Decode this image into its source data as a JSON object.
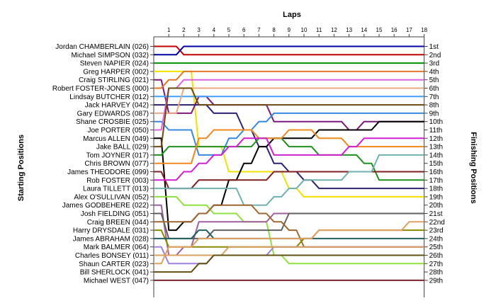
{
  "chart_data": {
    "type": "line",
    "title": "Laps",
    "ylabel_left": "Starting Positions",
    "ylabel_right": "Finishing Positions",
    "laps": [
      1,
      2,
      3,
      4,
      5,
      6,
      7,
      8,
      9,
      10,
      11,
      12,
      13,
      14,
      15,
      16,
      17,
      18
    ],
    "starting_labels": [
      "Jordan CHAMBERLAIN (026)",
      "Michael SIMPSON (032)",
      "Steven NAPIER (024)",
      "Greg HARPER (002)",
      "Craig STIRLING (021)",
      "Robert FOSTER-JONES (000)",
      "Lindsay BUTCHER (012)",
      "Jack HARVEY (042)",
      "Gary EDWARDS (087)",
      "Shane CROSBIE (025)",
      "Joe PORTER (050)",
      "Marcus ALLEN (049)",
      "Jake BALL (029)",
      "Tom JOYNER (017)",
      "Chris BROWN (077)",
      "James THEODORE (099)",
      "Rob FOSTER (003)",
      "Laura TILLETT (013)",
      "Alex O'SULLIVAN (052)",
      "James GODBEHERE (022)",
      "Josh FIELDING (051)",
      "Craig BREEN (044)",
      "Harry DRYSDALE (031)",
      "James ABRAHAM (028)",
      "Mark BALMER (064)",
      "Charles BONSEY (011)",
      "Shaun CARTER (023)",
      "Bill SHERLOCK (041)",
      "Michael WEST (047)"
    ],
    "finishing_labels": [
      "1st",
      "2nd",
      "3rd",
      "4th",
      "5th",
      "6th",
      "7th",
      "8th",
      "9th",
      "10th",
      "11th",
      "12th",
      "13th",
      "14th",
      "15th",
      "16th",
      "17th",
      "18th",
      "19th",
      "20th",
      "21st",
      "22nd",
      "23rd",
      "24th",
      "25th",
      "26th",
      "27th",
      "28th",
      "29th"
    ],
    "series": [
      {
        "color": "#c00000",
        "values": [
          1,
          1,
          2,
          2,
          2,
          2,
          2,
          2,
          2,
          2,
          2,
          2,
          2,
          2,
          2,
          2,
          2,
          2,
          2
        ]
      },
      {
        "color": "#0000a0",
        "values": [
          2,
          2,
          1,
          1,
          1,
          1,
          1,
          1,
          1,
          1,
          1,
          1,
          1,
          1,
          1,
          1,
          1,
          1,
          1
        ]
      },
      {
        "color": "#009000",
        "values": [
          3,
          3,
          3,
          3,
          3,
          3,
          3,
          3,
          3,
          3,
          3,
          3,
          3,
          3,
          3,
          3,
          3,
          3,
          3
        ]
      },
      {
        "color": "#f0e000",
        "values": [
          4,
          4,
          4,
          13,
          13,
          16,
          16,
          16,
          16,
          18,
          19,
          19,
          19,
          19,
          19,
          19,
          19,
          19,
          19
        ]
      },
      {
        "color": "#7b1a7b",
        "values": [
          5,
          9,
          9,
          7,
          8,
          8,
          8,
          8,
          10,
          10,
          10,
          10,
          10,
          11,
          10,
          10,
          10,
          10,
          10
        ]
      },
      {
        "color": "#e07828",
        "values": [
          6,
          5,
          4,
          4,
          4,
          4,
          4,
          4,
          4,
          4,
          4,
          4,
          4,
          4,
          4,
          4,
          4,
          4,
          4
        ]
      },
      {
        "color": "#40a0ff",
        "values": [
          7,
          7,
          7,
          7,
          7,
          7,
          7,
          7,
          7,
          7,
          7,
          7,
          7,
          7,
          7,
          7,
          7,
          7,
          7
        ]
      },
      {
        "color": "#302070",
        "values": [
          8,
          8,
          8,
          8,
          9,
          9,
          11,
          13,
          15,
          16,
          17,
          18,
          18,
          18,
          18,
          18,
          18,
          18,
          18
        ]
      },
      {
        "color": "#e8a880",
        "values": [
          9,
          9,
          6,
          6,
          6,
          6,
          6,
          6,
          6,
          6,
          6,
          6,
          6,
          6,
          6,
          6,
          6,
          6,
          6
        ]
      },
      {
        "color": "#3888e0",
        "values": [
          10,
          11,
          11,
          14,
          14,
          12,
          11,
          10,
          9,
          9,
          9,
          9,
          9,
          9,
          9,
          9,
          9,
          9,
          9
        ]
      },
      {
        "color": "#e060e0",
        "values": [
          11,
          6,
          5,
          5,
          5,
          5,
          5,
          5,
          5,
          5,
          5,
          5,
          5,
          5,
          5,
          5,
          5,
          5,
          5
        ]
      },
      {
        "color": "#000000",
        "values": [
          12,
          23,
          22,
          21,
          20,
          17,
          15,
          13,
          12,
          12,
          12,
          11,
          11,
          11,
          11,
          10,
          10,
          10,
          10
        ]
      },
      {
        "color": "#6c4a10",
        "values": [
          13,
          6,
          6,
          8,
          8,
          8,
          8,
          8,
          8,
          8,
          8,
          8,
          8,
          8,
          8,
          8,
          8,
          8,
          8
        ]
      },
      {
        "color": "#209020",
        "values": [
          14,
          13,
          13,
          13,
          13,
          13,
          13,
          12,
          12,
          13,
          13,
          14,
          14,
          14,
          15,
          17,
          17,
          17,
          17
        ]
      },
      {
        "color": "#f08820",
        "values": [
          15,
          15,
          15,
          12,
          11,
          11,
          11,
          12,
          12,
          11,
          11,
          12,
          12,
          13,
          13,
          13,
          13,
          13,
          13
        ]
      },
      {
        "color": "#802020",
        "values": [
          16,
          18,
          18,
          17,
          17,
          17,
          17,
          17,
          16,
          16,
          16,
          16,
          16,
          16,
          16,
          16,
          16,
          16,
          16
        ]
      },
      {
        "color": "#d020d0",
        "values": [
          17,
          17,
          16,
          15,
          14,
          13,
          12,
          12,
          14,
          14,
          14,
          14,
          14,
          13,
          12,
          12,
          12,
          12,
          12
        ]
      },
      {
        "color": "#70b0b0",
        "values": [
          18,
          18,
          18,
          18,
          18,
          18,
          20,
          20,
          19,
          18,
          17,
          17,
          17,
          16,
          16,
          14,
          14,
          14,
          14
        ]
      },
      {
        "color": "#90e040",
        "values": [
          19,
          19,
          20,
          20,
          21,
          21,
          22,
          22,
          26,
          27,
          27,
          27,
          27,
          27,
          27,
          27,
          27,
          27,
          27
        ]
      },
      {
        "color": "#a060a0",
        "values": [
          20,
          26,
          25,
          22,
          22,
          22,
          22,
          22,
          21,
          21,
          21,
          21,
          21,
          21,
          21,
          21,
          21,
          21,
          21
        ]
      },
      {
        "color": "#606060",
        "values": [
          21,
          24,
          24,
          24,
          23,
          23,
          23,
          23,
          23,
          21,
          21,
          21,
          21,
          21,
          21,
          21,
          21,
          21,
          21
        ]
      },
      {
        "color": "#a06830",
        "values": [
          22,
          22,
          22,
          21,
          20,
          20,
          20,
          21,
          22,
          23,
          25,
          25,
          25,
          25,
          25,
          25,
          25,
          25,
          25
        ]
      },
      {
        "color": "#8a8a00",
        "values": [
          23,
          25,
          25,
          25,
          25,
          25,
          25,
          25,
          25,
          25,
          24,
          23,
          23,
          23,
          23,
          23,
          23,
          23,
          23
        ]
      },
      {
        "color": "#206060",
        "values": [
          24,
          24,
          24,
          23,
          24,
          24,
          24,
          24,
          24,
          24,
          24,
          24,
          24,
          24,
          24,
          24,
          24,
          24,
          24
        ]
      },
      {
        "color": "#a080e0",
        "values": [
          25,
          27,
          27,
          27,
          26,
          26,
          26,
          26,
          25,
          25,
          25,
          25,
          25,
          25,
          25,
          25,
          25,
          25,
          25
        ]
      },
      {
        "color": "#d8a060",
        "values": [
          26,
          26,
          26,
          26,
          26,
          25,
          25,
          25,
          25,
          25,
          25,
          25,
          25,
          25,
          25,
          25,
          25,
          25,
          25
        ]
      },
      {
        "color": "#e0a060",
        "values": [
          27,
          25,
          25,
          24,
          24,
          24,
          24,
          24,
          24,
          24,
          24,
          23,
          23,
          23,
          23,
          23,
          23,
          22,
          22
        ]
      },
      {
        "color": "#605010",
        "values": [
          28,
          28,
          28,
          27,
          26,
          26,
          26,
          26,
          26,
          26,
          26,
          26,
          26,
          26,
          26,
          26,
          26,
          26,
          26
        ]
      },
      {
        "color": "#7d2030",
        "values": [
          29,
          29,
          29,
          29,
          29,
          29,
          29,
          29,
          29,
          29,
          29,
          29,
          29,
          29,
          29,
          29,
          29,
          29,
          29
        ]
      }
    ]
  }
}
